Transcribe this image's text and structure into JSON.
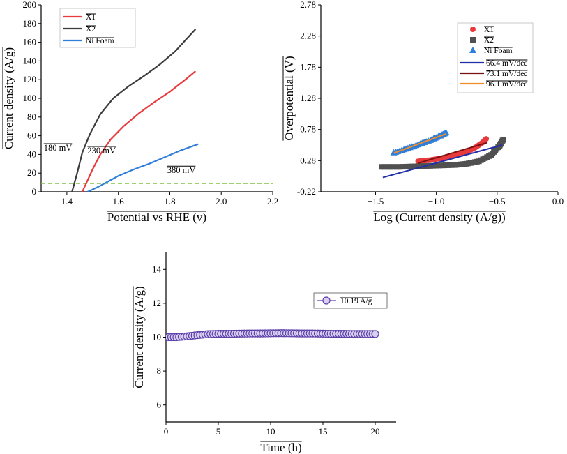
{
  "chart_data": [
    {
      "type": "line",
      "panel": "top-left",
      "xlabel": "Potential vs RHE (v)",
      "ylabel": "Current density (A/g)",
      "xlim": [
        1.3,
        2.2
      ],
      "ylim": [
        0,
        200
      ],
      "xticks": [
        1.4,
        1.6,
        1.8,
        2.0,
        2.2
      ],
      "yticks": [
        0,
        20,
        40,
        60,
        80,
        100,
        120,
        140,
        160,
        180,
        200
      ],
      "xtick_labels": [
        "1.4",
        "1.6",
        "1.8",
        "2.0",
        "2.2"
      ],
      "ytick_labels": [
        "0",
        "20",
        "40",
        "60",
        "80",
        "100",
        "120",
        "140",
        "160",
        "180",
        "200"
      ],
      "legend_position": "top-left",
      "series": [
        {
          "name": "X1",
          "color": "#e8393c",
          "x": [
            1.46,
            1.48,
            1.5,
            1.53,
            1.57,
            1.62,
            1.68,
            1.74,
            1.8,
            1.86,
            1.9
          ],
          "y": [
            0,
            12,
            24,
            40,
            56,
            70,
            84,
            96,
            107,
            120,
            129
          ]
        },
        {
          "name": "X2",
          "color": "#3c3c3c",
          "x": [
            1.42,
            1.44,
            1.46,
            1.49,
            1.53,
            1.58,
            1.64,
            1.7,
            1.76,
            1.82,
            1.88,
            1.9
          ],
          "y": [
            0,
            20,
            42,
            62,
            83,
            100,
            113,
            124,
            136,
            150,
            168,
            174
          ]
        },
        {
          "name": "Ni Foam",
          "color": "#2f7ed8",
          "x": [
            1.48,
            1.52,
            1.56,
            1.6,
            1.66,
            1.72,
            1.78,
            1.84,
            1.91
          ],
          "y": [
            0,
            5,
            11,
            17,
            24,
            30,
            37,
            44,
            51
          ]
        }
      ],
      "reference_line": {
        "y": 9,
        "color": "#7fc03c"
      },
      "annotations": [
        {
          "text": "180 mV",
          "x": 1.31,
          "y": 44
        },
        {
          "text": "230 mV",
          "x": 1.48,
          "y": 41
        },
        {
          "text": "380 mV",
          "x": 1.79,
          "y": 20
        }
      ]
    },
    {
      "type": "scatter",
      "panel": "top-right",
      "xlabel": "Log (Current density (A/g))",
      "ylabel": "Overpotential (V)",
      "xlim": [
        -1.95,
        0.0
      ],
      "ylim": [
        -0.22,
        2.78
      ],
      "xticks": [
        -1.5,
        -1.0,
        -0.5,
        0.0
      ],
      "yticks": [
        -0.22,
        0.28,
        0.78,
        1.28,
        1.78,
        2.28,
        2.78
      ],
      "xtick_labels": [
        "−1.5",
        "−1.0",
        "−0.5",
        "0.0"
      ],
      "ytick_labels": [
        "-0.22",
        "0.28",
        "0.78",
        "1.28",
        "1.78",
        "2.28",
        "2.78"
      ],
      "legend_position": "top-right",
      "series": [
        {
          "name": "X1",
          "marker": "circle",
          "color": "#e8393c",
          "x": [
            -1.15,
            -1.05,
            -0.95,
            -0.85,
            -0.75,
            -0.68,
            -0.62,
            -0.59
          ],
          "y": [
            0.27,
            0.29,
            0.32,
            0.36,
            0.42,
            0.49,
            0.57,
            0.63
          ]
        },
        {
          "name": "X2",
          "marker": "square",
          "color": "#505050",
          "x": [
            -1.45,
            -1.3,
            -1.15,
            -1.0,
            -0.85,
            -0.75,
            -0.65,
            -0.55,
            -0.48,
            -0.45
          ],
          "y": [
            0.18,
            0.18,
            0.19,
            0.2,
            0.21,
            0.23,
            0.27,
            0.37,
            0.52,
            0.62
          ]
        },
        {
          "name": "Ni Foam",
          "marker": "triangle",
          "color": "#2f7ed8",
          "x": [
            -1.35,
            -1.25,
            -1.15,
            -1.05,
            -0.97,
            -0.92
          ],
          "y": [
            0.41,
            0.47,
            0.54,
            0.61,
            0.68,
            0.73
          ]
        }
      ],
      "fits": [
        {
          "name": "66.4 mV/dec",
          "color": "#1f2ea8",
          "x": [
            -1.44,
            -0.46
          ],
          "y": [
            0.01,
            0.53
          ]
        },
        {
          "name": "73.1 mV/dec",
          "color": "#7a1010",
          "x": [
            -1.15,
            -0.58
          ],
          "y": [
            0.24,
            0.57
          ]
        },
        {
          "name": "96.1 mV/dec",
          "color": "#f28c28",
          "x": [
            -1.35,
            -0.92
          ],
          "y": [
            0.4,
            0.71
          ]
        }
      ]
    },
    {
      "type": "scatter",
      "panel": "bottom",
      "xlabel": "Time (h)",
      "ylabel": "Current density (A/g)",
      "xlim": [
        0,
        22
      ],
      "ylim": [
        5,
        15
      ],
      "xticks": [
        0,
        5,
        10,
        15,
        20
      ],
      "yticks": [
        6,
        8,
        10,
        12,
        14
      ],
      "xtick_labels": [
        "0",
        "5",
        "10",
        "15",
        "20"
      ],
      "ytick_labels": [
        "6",
        "8",
        "10",
        "12",
        "14"
      ],
      "legend_position": "right",
      "series": [
        {
          "name": "10.19 A/g",
          "marker": "circle-open",
          "color": "#5b3fa8",
          "fill": "#d8cff0",
          "x": [
            0,
            1,
            2,
            3,
            4,
            5,
            6,
            7,
            8,
            9,
            10,
            11,
            12,
            13,
            14,
            15,
            16,
            17,
            18,
            19,
            20
          ],
          "y": [
            10.0,
            10.0,
            10.05,
            10.12,
            10.18,
            10.2,
            10.2,
            10.21,
            10.22,
            10.22,
            10.23,
            10.24,
            10.23,
            10.22,
            10.22,
            10.21,
            10.2,
            10.2,
            10.19,
            10.19,
            10.19
          ]
        }
      ]
    }
  ]
}
